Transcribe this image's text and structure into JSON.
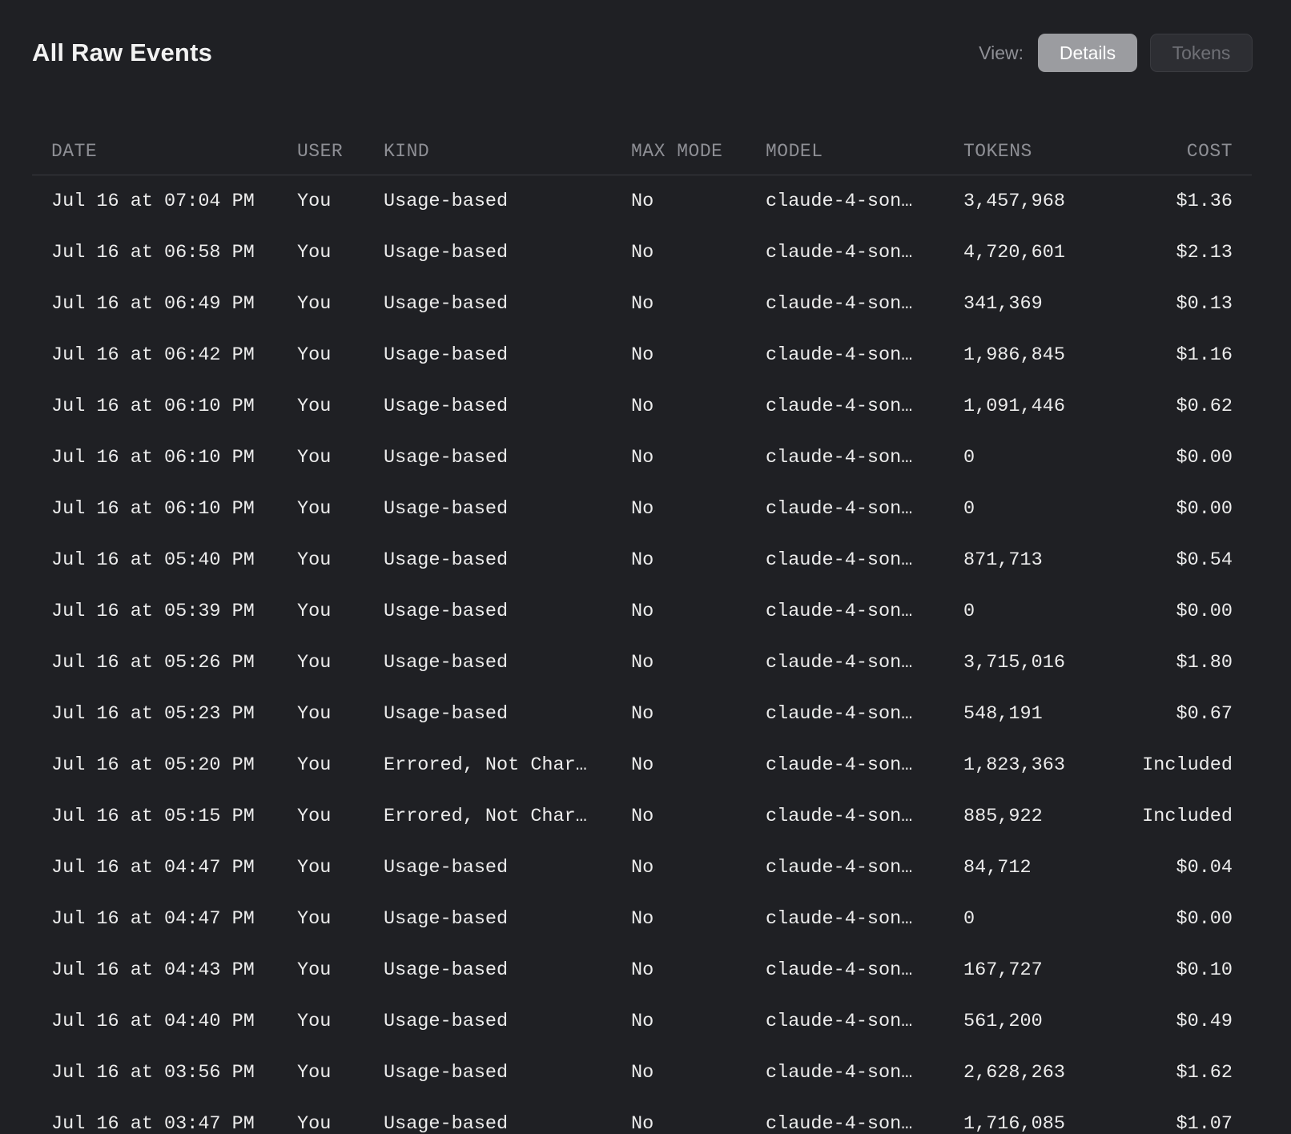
{
  "header": {
    "title": "All Raw Events",
    "view_label": "View:",
    "buttons": [
      {
        "label": "Details",
        "active": true
      },
      {
        "label": "Tokens",
        "active": false
      }
    ]
  },
  "table": {
    "columns": [
      "DATE",
      "USER",
      "KIND",
      "MAX MODE",
      "MODEL",
      "TOKENS",
      "COST"
    ],
    "rows": [
      {
        "date": "Jul 16 at 07:04 PM",
        "user": "You",
        "kind": "Usage-based",
        "max_mode": "No",
        "model": "claude-4-son…",
        "tokens": "3,457,968",
        "cost": "$1.36"
      },
      {
        "date": "Jul 16 at 06:58 PM",
        "user": "You",
        "kind": "Usage-based",
        "max_mode": "No",
        "model": "claude-4-son…",
        "tokens": "4,720,601",
        "cost": "$2.13"
      },
      {
        "date": "Jul 16 at 06:49 PM",
        "user": "You",
        "kind": "Usage-based",
        "max_mode": "No",
        "model": "claude-4-son…",
        "tokens": "341,369",
        "cost": "$0.13"
      },
      {
        "date": "Jul 16 at 06:42 PM",
        "user": "You",
        "kind": "Usage-based",
        "max_mode": "No",
        "model": "claude-4-son…",
        "tokens": "1,986,845",
        "cost": "$1.16"
      },
      {
        "date": "Jul 16 at 06:10 PM",
        "user": "You",
        "kind": "Usage-based",
        "max_mode": "No",
        "model": "claude-4-son…",
        "tokens": "1,091,446",
        "cost": "$0.62"
      },
      {
        "date": "Jul 16 at 06:10 PM",
        "user": "You",
        "kind": "Usage-based",
        "max_mode": "No",
        "model": "claude-4-son…",
        "tokens": "0",
        "cost": "$0.00"
      },
      {
        "date": "Jul 16 at 06:10 PM",
        "user": "You",
        "kind": "Usage-based",
        "max_mode": "No",
        "model": "claude-4-son…",
        "tokens": "0",
        "cost": "$0.00"
      },
      {
        "date": "Jul 16 at 05:40 PM",
        "user": "You",
        "kind": "Usage-based",
        "max_mode": "No",
        "model": "claude-4-son…",
        "tokens": "871,713",
        "cost": "$0.54"
      },
      {
        "date": "Jul 16 at 05:39 PM",
        "user": "You",
        "kind": "Usage-based",
        "max_mode": "No",
        "model": "claude-4-son…",
        "tokens": "0",
        "cost": "$0.00"
      },
      {
        "date": "Jul 16 at 05:26 PM",
        "user": "You",
        "kind": "Usage-based",
        "max_mode": "No",
        "model": "claude-4-son…",
        "tokens": "3,715,016",
        "cost": "$1.80"
      },
      {
        "date": "Jul 16 at 05:23 PM",
        "user": "You",
        "kind": "Usage-based",
        "max_mode": "No",
        "model": "claude-4-son…",
        "tokens": "548,191",
        "cost": "$0.67"
      },
      {
        "date": "Jul 16 at 05:20 PM",
        "user": "You",
        "kind": "Errored, Not Char…",
        "max_mode": "No",
        "model": "claude-4-son…",
        "tokens": "1,823,363",
        "cost": "Included"
      },
      {
        "date": "Jul 16 at 05:15 PM",
        "user": "You",
        "kind": "Errored, Not Char…",
        "max_mode": "No",
        "model": "claude-4-son…",
        "tokens": "885,922",
        "cost": "Included"
      },
      {
        "date": "Jul 16 at 04:47 PM",
        "user": "You",
        "kind": "Usage-based",
        "max_mode": "No",
        "model": "claude-4-son…",
        "tokens": "84,712",
        "cost": "$0.04"
      },
      {
        "date": "Jul 16 at 04:47 PM",
        "user": "You",
        "kind": "Usage-based",
        "max_mode": "No",
        "model": "claude-4-son…",
        "tokens": "0",
        "cost": "$0.00"
      },
      {
        "date": "Jul 16 at 04:43 PM",
        "user": "You",
        "kind": "Usage-based",
        "max_mode": "No",
        "model": "claude-4-son…",
        "tokens": "167,727",
        "cost": "$0.10"
      },
      {
        "date": "Jul 16 at 04:40 PM",
        "user": "You",
        "kind": "Usage-based",
        "max_mode": "No",
        "model": "claude-4-son…",
        "tokens": "561,200",
        "cost": "$0.49"
      },
      {
        "date": "Jul 16 at 03:56 PM",
        "user": "You",
        "kind": "Usage-based",
        "max_mode": "No",
        "model": "claude-4-son…",
        "tokens": "2,628,263",
        "cost": "$1.62"
      },
      {
        "date": "Jul 16 at 03:47 PM",
        "user": "You",
        "kind": "Usage-based",
        "max_mode": "No",
        "model": "claude-4-son…",
        "tokens": "1,716,085",
        "cost": "$1.07"
      }
    ]
  }
}
